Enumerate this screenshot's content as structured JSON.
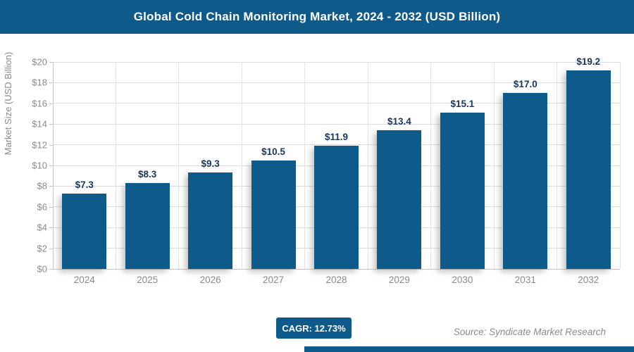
{
  "header": {
    "title": "Global Cold Chain Monitoring Market, 2024 - 2032 (USD Billion)"
  },
  "chart_data": {
    "type": "bar",
    "title": "Global Cold Chain Monitoring Market, 2024 - 2032 (USD Billion)",
    "categories": [
      "2024",
      "2025",
      "2026",
      "2027",
      "2028",
      "2029",
      "2030",
      "2031",
      "2032"
    ],
    "values": [
      7.3,
      8.3,
      9.3,
      10.5,
      11.9,
      13.4,
      15.1,
      17.0,
      19.2
    ],
    "bar_labels": [
      "$7.3",
      "$8.3",
      "$9.3",
      "$10.5",
      "$11.9",
      "$13.4",
      "$15.1",
      "$17.0",
      "$19.2"
    ],
    "xlabel": "",
    "ylabel": "Market Size (USD Billion)",
    "ylim": [
      0,
      20
    ],
    "ytick_step": 2,
    "ytick_prefix": "$",
    "ytick_labels": [
      "$0",
      "$2",
      "$4",
      "$6",
      "$8",
      "$10",
      "$12",
      "$14",
      "$16",
      "$18",
      "$20"
    ],
    "grid": true,
    "legend": "none"
  },
  "footer": {
    "cagr_label": "CAGR: 12.73%",
    "source": "Source: Syndicate Market Research"
  },
  "colors": {
    "brand_navy": "#0e5a8a",
    "bar_fill": "#0e5a8a",
    "bar_label_text": "#17375c",
    "axis_text": "#8a8a8a",
    "gridline": "#dcdcdc",
    "header_text": "#ffffff"
  }
}
